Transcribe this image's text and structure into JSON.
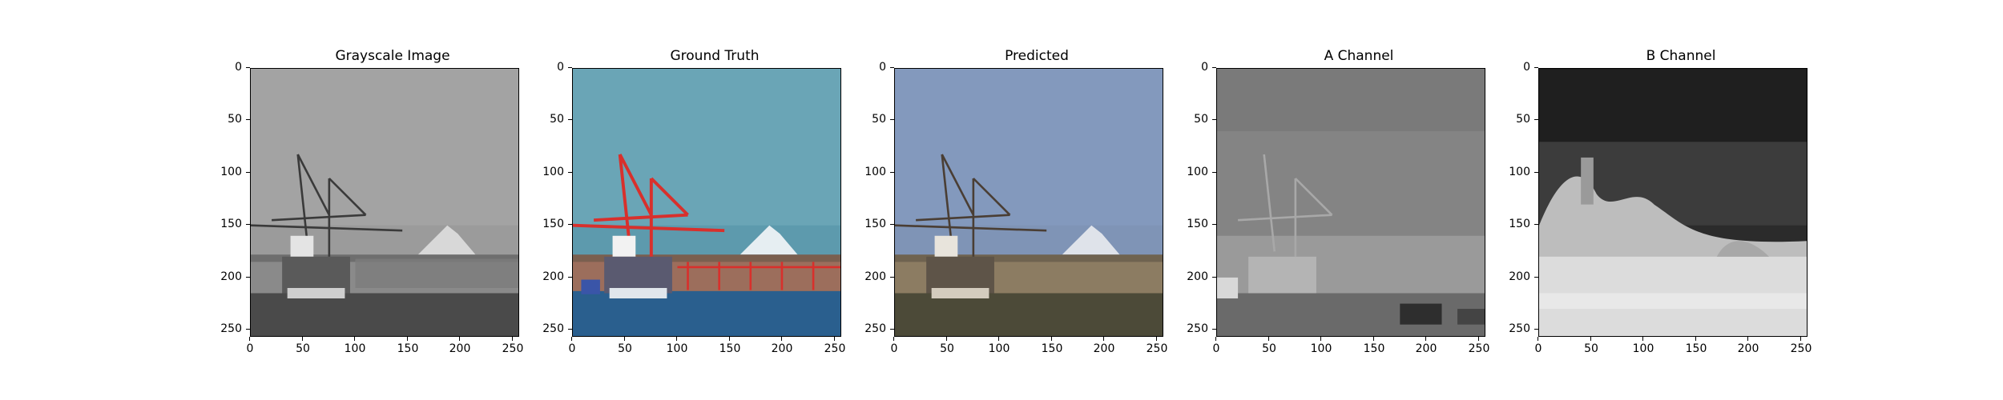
{
  "panels": [
    {
      "title": "Grayscale Image"
    },
    {
      "title": "Ground Truth"
    },
    {
      "title": "Predicted"
    },
    {
      "title": "A Channel"
    },
    {
      "title": "B Channel"
    }
  ],
  "y_ticks": [
    "0",
    "50",
    "100",
    "150",
    "200",
    "250"
  ],
  "x_ticks": [
    "0",
    "50",
    "100",
    "150",
    "200",
    "250"
  ],
  "colors": {
    "gray_sky": "#9a9a9a",
    "gt_sky": "#5e9aae",
    "gt_crane": "#d8302c",
    "gt_water": "#2a5f8e",
    "pred_sky": "#7f95b8",
    "a_bg": "#8c8c8c",
    "b_bg": "#2a2a2a",
    "b_bright": "#e2e2e2"
  }
}
